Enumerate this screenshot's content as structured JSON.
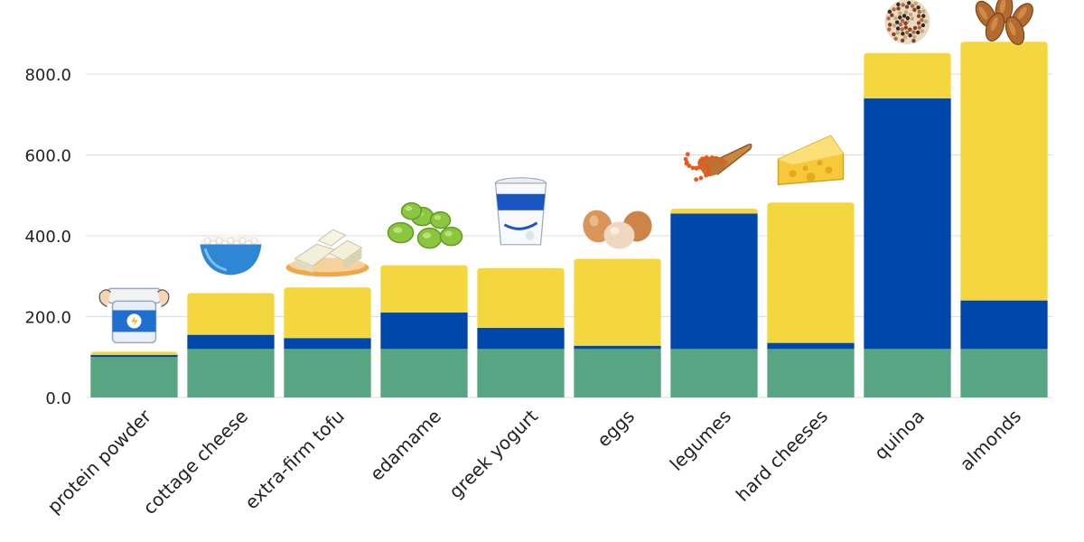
{
  "chart_data": {
    "type": "bar",
    "stacked": true,
    "title": "",
    "xlabel": "",
    "ylabel": "",
    "ylim": [
      0,
      900
    ],
    "yticks": [
      "0.0",
      "200.0",
      "400.0",
      "600.0",
      "800.0"
    ],
    "ytick_values": [
      0,
      200,
      400,
      600,
      800
    ],
    "grid": "horizontal",
    "categories": [
      "protein powder",
      "cottage cheese",
      "extra-firm tofu",
      "edamame",
      "greek yogurt",
      "eggs",
      "legumes",
      "hard cheeses",
      "quinoa",
      "almonds"
    ],
    "series": [
      {
        "values": [
          100,
          120,
          120,
          120,
          120,
          120,
          120,
          120,
          120,
          120
        ]
      },
      {
        "values": [
          5,
          35,
          27,
          90,
          52,
          8,
          335,
          15,
          620,
          120
        ]
      },
      {
        "values": [
          8,
          103,
          125,
          117,
          148,
          215,
          12,
          347,
          112,
          640
        ]
      }
    ],
    "colors": [
      "#57a582",
      "#0047ab",
      "#f4d63e"
    ],
    "icons": [
      "protein-tub-icon",
      "cottage-cheese-bowl-icon",
      "tofu-icon",
      "edamame-icon",
      "greek-yogurt-icon",
      "eggs-icon",
      "lentils-icon",
      "cheese-wedge-icon",
      "quinoa-icon",
      "almonds-icon"
    ]
  }
}
